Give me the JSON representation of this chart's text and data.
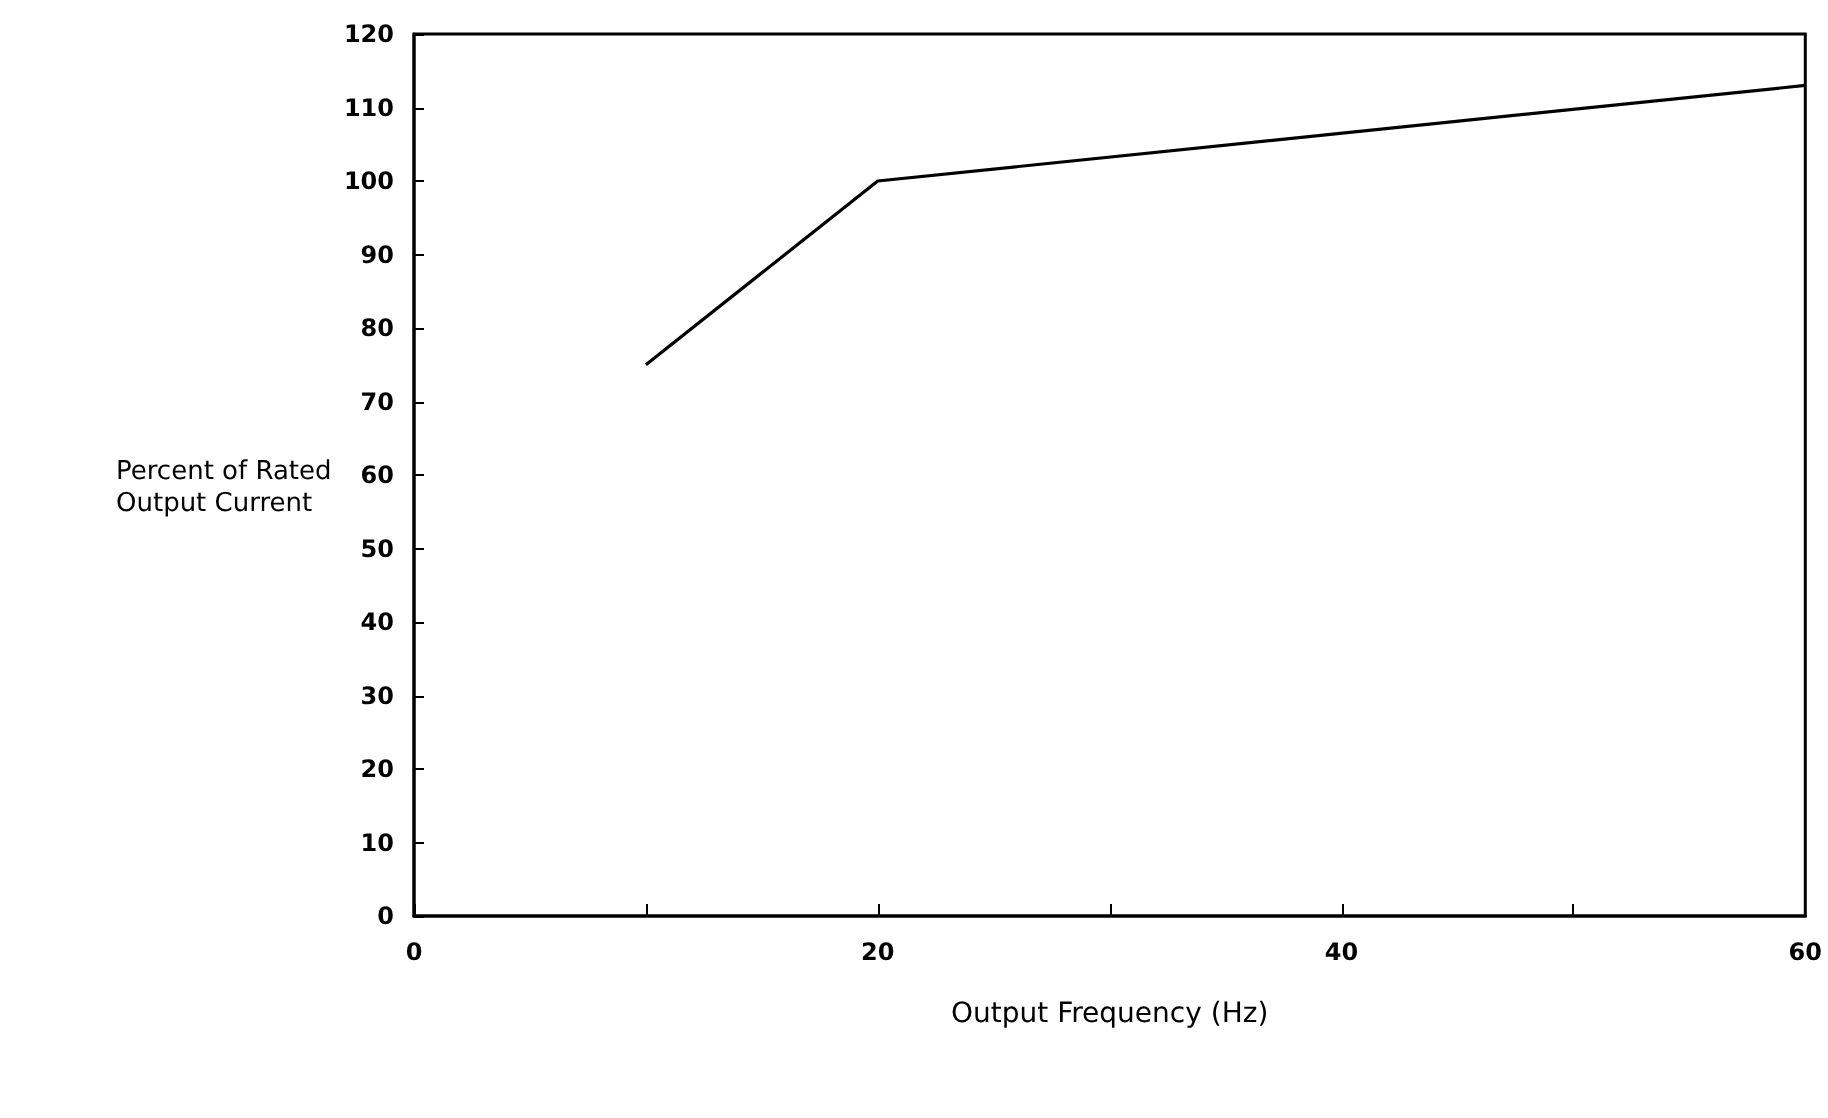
{
  "chart_data": {
    "type": "line",
    "xlabel": "Output Frequency (Hz)",
    "ylabel": "Percent of Rated Output Current",
    "x": [
      10,
      20,
      60
    ],
    "series": [
      {
        "color": "#000000",
        "values": [
          75,
          100,
          113
        ]
      }
    ],
    "xlim": [
      0,
      60
    ],
    "xticks": [
      0,
      {
        "value": 10,
        "label": null
      },
      20,
      {
        "value": 30,
        "label": null
      },
      40,
      {
        "value": 50,
        "label": null
      },
      60
    ],
    "ylim": [
      0,
      120
    ],
    "yticks": [
      0,
      10,
      20,
      30,
      40,
      50,
      60,
      70,
      80,
      90,
      100,
      110,
      120
    ],
    "grid": false,
    "marker": "none",
    "line_style": "solid"
  }
}
